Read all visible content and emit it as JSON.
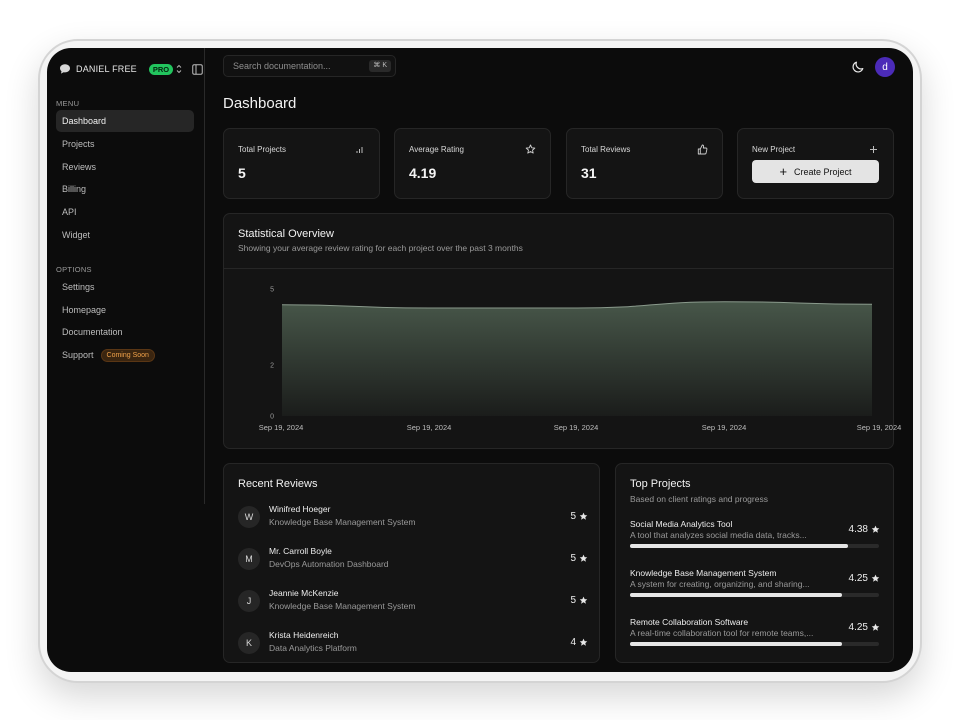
{
  "brand": {
    "name": "DANIEL FREE",
    "plan_badge": "PRO"
  },
  "sidebar": {
    "menu_label": "MENU",
    "menu_items": [
      {
        "label": "Dashboard",
        "active": true
      },
      {
        "label": "Projects"
      },
      {
        "label": "Reviews"
      },
      {
        "label": "Billing"
      },
      {
        "label": "API"
      },
      {
        "label": "Widget"
      }
    ],
    "options_label": "OPTIONS",
    "option_items": [
      {
        "label": "Settings"
      },
      {
        "label": "Homepage"
      },
      {
        "label": "Documentation"
      },
      {
        "label": "Support",
        "badge": "Coming Soon"
      }
    ]
  },
  "search": {
    "placeholder": "Search documentation...",
    "shortcut": "⌘ K"
  },
  "user": {
    "avatar_initial": "d",
    "avatar_color": "#4b2bb8"
  },
  "page": {
    "title": "Dashboard"
  },
  "stats": [
    {
      "label": "Total Projects",
      "value": "5",
      "icon": "bar-chart-icon"
    },
    {
      "label": "Average Rating",
      "value": "4.19",
      "icon": "star-icon"
    },
    {
      "label": "Total Reviews",
      "value": "31",
      "icon": "thumbs-up-icon"
    }
  ],
  "new_project": {
    "label": "New Project",
    "button_label": "Create Project"
  },
  "overview": {
    "title": "Statistical Overview",
    "subtitle": "Showing your average review rating for each project over the past 3 months"
  },
  "chart_data": {
    "type": "area",
    "x": [
      "Sep 19, 2024",
      "Sep 19, 2024",
      "Sep 19, 2024",
      "Sep 19, 2024",
      "Sep 19, 2024"
    ],
    "series": [
      {
        "values": [
          4.38,
          4.25,
          4.25,
          4.5,
          4.4
        ]
      }
    ],
    "yticks": [
      5,
      2,
      0
    ],
    "ylim": [
      0,
      5
    ],
    "grid": false,
    "legend": "none",
    "fill_color": "#4a5a4c",
    "line_color": "#8a9a8c"
  },
  "recent_reviews": {
    "title": "Recent Reviews",
    "items": [
      {
        "initial": "W",
        "name": "Winifred Hoeger",
        "project": "Knowledge Base Management System",
        "rating": "5"
      },
      {
        "initial": "M",
        "name": "Mr. Carroll Boyle",
        "project": "DevOps Automation Dashboard",
        "rating": "5"
      },
      {
        "initial": "J",
        "name": "Jeannie McKenzie",
        "project": "Knowledge Base Management System",
        "rating": "5"
      },
      {
        "initial": "K",
        "name": "Krista Heidenreich",
        "project": "Data Analytics Platform",
        "rating": "4"
      }
    ]
  },
  "top_projects": {
    "title": "Top Projects",
    "subtitle": "Based on client ratings and progress",
    "items": [
      {
        "name": "Social Media Analytics Tool",
        "description": "A tool that analyzes social media data, tracks...",
        "rating": "4.38",
        "progress": 0.876
      },
      {
        "name": "Knowledge Base Management System",
        "description": "A system for creating, organizing, and sharing...",
        "rating": "4.25",
        "progress": 0.85
      },
      {
        "name": "Remote Collaboration Software",
        "description": "A real-time collaboration tool for remote teams,...",
        "rating": "4.25",
        "progress": 0.85
      }
    ]
  }
}
